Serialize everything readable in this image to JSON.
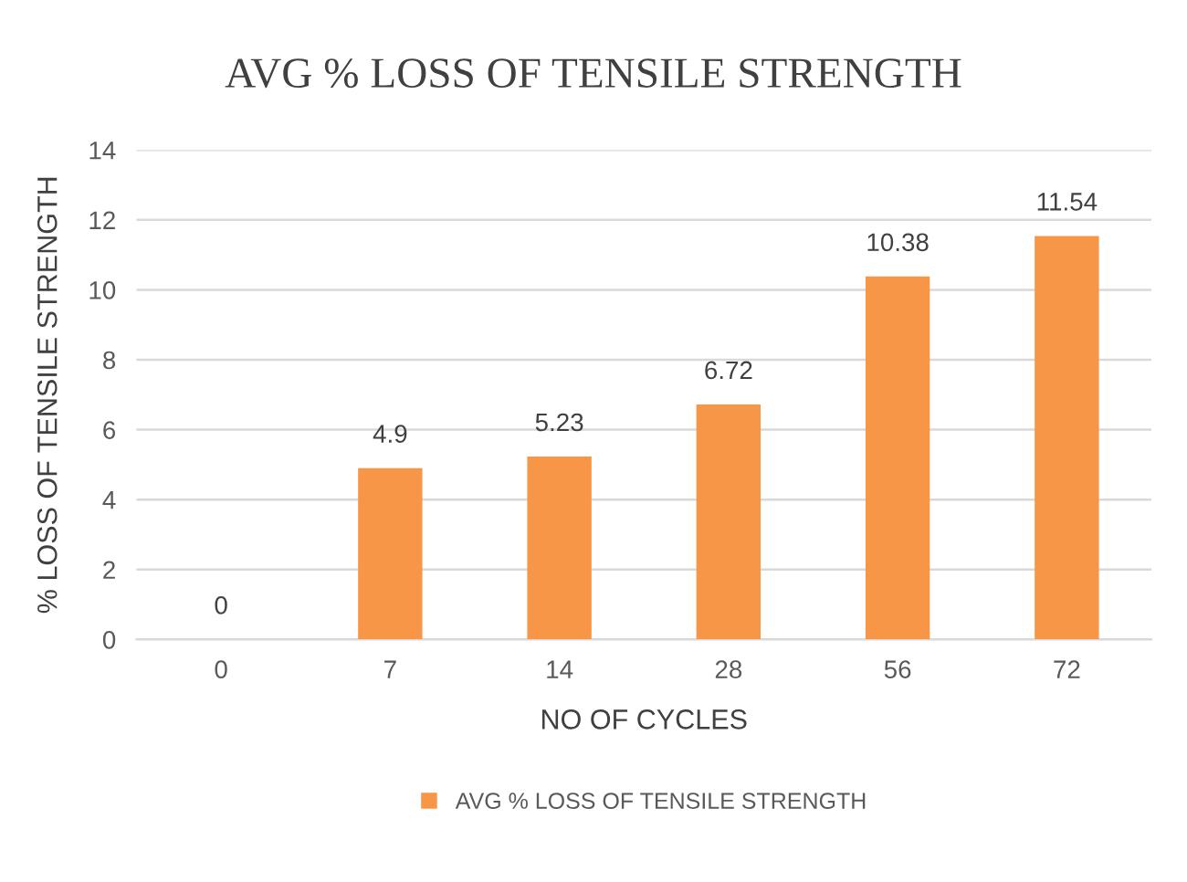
{
  "chart_data": {
    "type": "bar",
    "title": "AVG % LOSS OF TENSILE STRENGTH",
    "xlabel": "NO OF CYCLES",
    "ylabel": "% LOSS OF TENSILE STRENGTH",
    "categories": [
      "0",
      "7",
      "14",
      "28",
      "56",
      "72"
    ],
    "series": [
      {
        "name": "AVG % LOSS OF TENSILE STRENGTH",
        "color": "#f79646",
        "values": [
          0,
          4.9,
          5.23,
          6.72,
          10.38,
          11.54
        ]
      }
    ],
    "ylim": [
      0,
      14
    ],
    "yticks": [
      0,
      2,
      4,
      6,
      8,
      10,
      12,
      14
    ],
    "grid": "y",
    "legend": "bottom",
    "data_labels": true
  }
}
